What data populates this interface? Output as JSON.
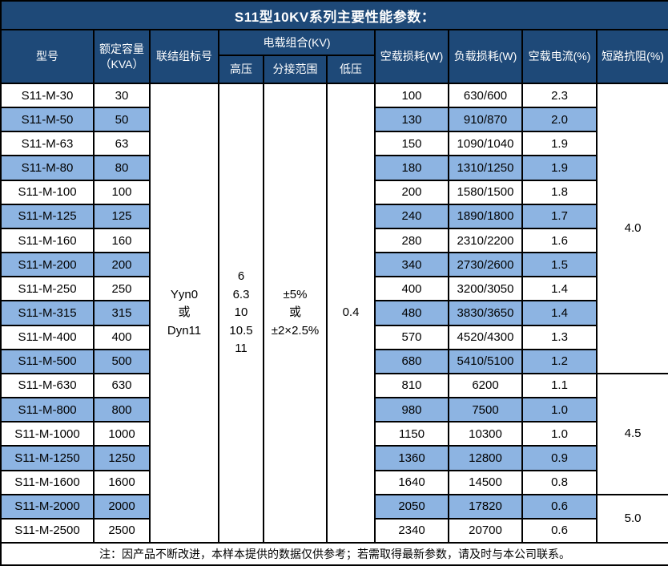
{
  "title": "S11型10KV系列主要性能参数：",
  "header": {
    "model": "型号",
    "capacity_line1": "额定容量",
    "capacity_line2": "（KVA）",
    "connection": "联结组标号",
    "voltage_group": "电载组合(KV)",
    "hv": "高压",
    "tap_range": "分接范围",
    "lv": "低压",
    "no_load_loss": "空载损耗(W)",
    "load_loss": "负载损耗(W)",
    "no_load_current": "空载电流(%)",
    "impedance": "短路抗阻(%)"
  },
  "merged": {
    "connection_lines": [
      "Yyn0",
      "或",
      "Dyn11"
    ],
    "hv_lines": [
      "6",
      "6.3",
      "10",
      "10.5",
      "11"
    ],
    "tap_lines": [
      "±5%",
      "或",
      "±2×2.5%"
    ],
    "lv": "0.4",
    "impedance_groups": [
      {
        "value": "4.0",
        "rows": 12
      },
      {
        "value": "4.5",
        "rows": 5
      },
      {
        "value": "5.0",
        "rows": 2
      }
    ]
  },
  "rows": [
    {
      "model": "S11-M-30",
      "capacity": "30",
      "no_load_loss": "100",
      "load_loss": "630/600",
      "no_load_current": "2.3"
    },
    {
      "model": "S11-M-50",
      "capacity": "50",
      "no_load_loss": "130",
      "load_loss": "910/870",
      "no_load_current": "2.0"
    },
    {
      "model": "S11-M-63",
      "capacity": "63",
      "no_load_loss": "150",
      "load_loss": "1090/1040",
      "no_load_current": "1.9"
    },
    {
      "model": "S11-M-80",
      "capacity": "80",
      "no_load_loss": "180",
      "load_loss": "1310/1250",
      "no_load_current": "1.9"
    },
    {
      "model": "S11-M-100",
      "capacity": "100",
      "no_load_loss": "200",
      "load_loss": "1580/1500",
      "no_load_current": "1.8"
    },
    {
      "model": "S11-M-125",
      "capacity": "125",
      "no_load_loss": "240",
      "load_loss": "1890/1800",
      "no_load_current": "1.7"
    },
    {
      "model": "S11-M-160",
      "capacity": "160",
      "no_load_loss": "280",
      "load_loss": "2310/2200",
      "no_load_current": "1.6"
    },
    {
      "model": "S11-M-200",
      "capacity": "200",
      "no_load_loss": "340",
      "load_loss": "2730/2600",
      "no_load_current": "1.5"
    },
    {
      "model": "S11-M-250",
      "capacity": "250",
      "no_load_loss": "400",
      "load_loss": "3200/3050",
      "no_load_current": "1.4"
    },
    {
      "model": "S11-M-315",
      "capacity": "315",
      "no_load_loss": "480",
      "load_loss": "3830/3650",
      "no_load_current": "1.4"
    },
    {
      "model": "S11-M-400",
      "capacity": "400",
      "no_load_loss": "570",
      "load_loss": "4520/4300",
      "no_load_current": "1.3"
    },
    {
      "model": "S11-M-500",
      "capacity": "500",
      "no_load_loss": "680",
      "load_loss": "5410/5100",
      "no_load_current": "1.2"
    },
    {
      "model": "S11-M-630",
      "capacity": "630",
      "no_load_loss": "810",
      "load_loss": "6200",
      "no_load_current": "1.1"
    },
    {
      "model": "S11-M-800",
      "capacity": "800",
      "no_load_loss": "980",
      "load_loss": "7500",
      "no_load_current": "1.0"
    },
    {
      "model": "S11-M-1000",
      "capacity": "1000",
      "no_load_loss": "1150",
      "load_loss": "10300",
      "no_load_current": "1.0"
    },
    {
      "model": "S11-M-1250",
      "capacity": "1250",
      "no_load_loss": "1360",
      "load_loss": "12800",
      "no_load_current": "0.9"
    },
    {
      "model": "S11-M-1600",
      "capacity": "1600",
      "no_load_loss": "1640",
      "load_loss": "14500",
      "no_load_current": "0.8"
    },
    {
      "model": "S11-M-2000",
      "capacity": "2000",
      "no_load_loss": "2050",
      "load_loss": "17820",
      "no_load_current": "0.6"
    },
    {
      "model": "S11-M-2500",
      "capacity": "2500",
      "no_load_loss": "2340",
      "load_loss": "20700",
      "no_load_current": "0.6"
    }
  ],
  "note": "注：因产品不断改进，本样本提供的数据仅供参考；若需取得最新参数，请及时与本公司联系。",
  "colors": {
    "header_bg": "#1e4978",
    "stripe_bg": "#8db4e2",
    "border": "#000000",
    "header_text": "#ffffff",
    "body_text": "#000000"
  }
}
